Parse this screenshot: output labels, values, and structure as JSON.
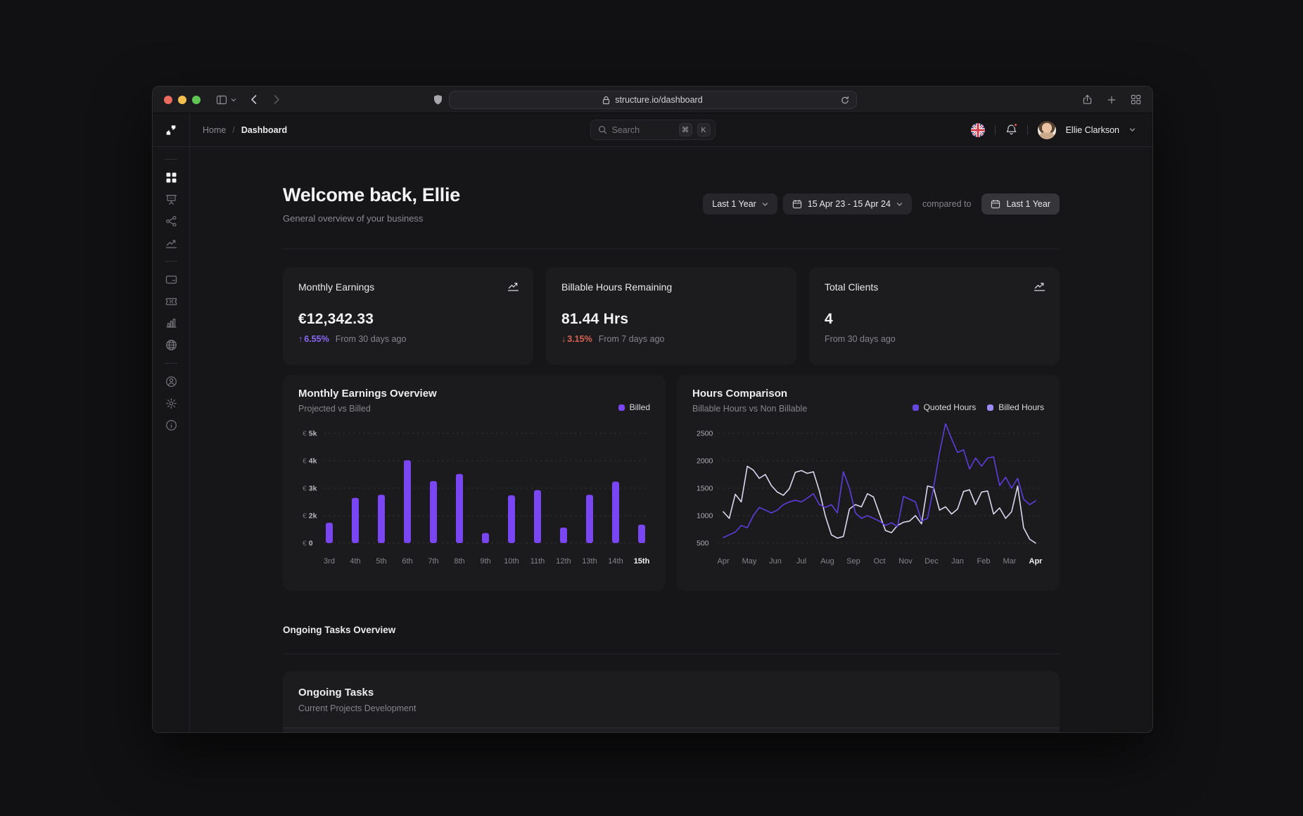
{
  "browser": {
    "url": "structure.io/dashboard"
  },
  "header": {
    "breadcrumb": {
      "home": "Home",
      "separator": "/",
      "current": "Dashboard"
    },
    "search": {
      "placeholder": "Search",
      "key_cmd": "⌘",
      "key_k": "K"
    },
    "user": {
      "name": "Ellie Clarkson"
    }
  },
  "page": {
    "title": "Welcome back, Ellie",
    "subtitle": "General overview of your business",
    "controls": {
      "range_label": "Last 1 Year",
      "date_range": "15 Apr 23 - 15 Apr 24",
      "compared_to": "compared to",
      "compare_label": "Last 1 Year"
    },
    "section_label": "Ongoing Tasks Overview"
  },
  "stats": [
    {
      "title": "Monthly Earnings",
      "value": "€12,342.33",
      "delta": "6.55%",
      "delta_dir": "up",
      "delta_arrow": "↑",
      "caption": "From 30 days ago"
    },
    {
      "title": "Billable Hours Remaining",
      "value": "81.44 Hrs",
      "delta": "3.15%",
      "delta_dir": "down",
      "delta_arrow": "↓",
      "caption": "From 7 days ago"
    },
    {
      "title": "Total Clients",
      "value": "4",
      "delta": null,
      "caption": "From 30 days ago"
    }
  ],
  "tasks": {
    "title": "Ongoing Tasks",
    "subtitle": "Current Projects Development"
  },
  "sidebar": {
    "items": [
      {
        "type": "divider"
      },
      {
        "name": "dashboard",
        "active": true
      },
      {
        "name": "presentation"
      },
      {
        "name": "workflow"
      },
      {
        "name": "trends"
      },
      {
        "type": "divider"
      },
      {
        "name": "payments"
      },
      {
        "name": "tickets"
      },
      {
        "name": "reports"
      },
      {
        "name": "globe"
      },
      {
        "type": "divider"
      },
      {
        "name": "account"
      },
      {
        "name": "settings"
      },
      {
        "name": "info"
      }
    ]
  },
  "colors": {
    "accent_bar": "#7a45f2",
    "delta_up": "#8b68f8",
    "delta_down": "#d96250",
    "line_quoted": "#5f3cdc",
    "line_billed": "#dcd8ee",
    "notification_dot": "#e8594b",
    "traffic_red": "#ed6a5f",
    "traffic_yellow": "#f5bf4f",
    "traffic_green": "#61c555"
  },
  "chart_data": [
    {
      "type": "bar",
      "title": "Monthly Earnings Overview",
      "subtitle": "Projected vs Billed",
      "legend": [
        {
          "label": "Billed",
          "color": "#7a45f2"
        }
      ],
      "categories": [
        "3rd",
        "4th",
        "5th",
        "6th",
        "7th",
        "8th",
        "9th",
        "10th",
        "11th",
        "12th",
        "13th",
        "14th",
        "15th"
      ],
      "values": [
        1480,
        2650,
        2760,
        4020,
        3260,
        3520,
        730,
        2740,
        2930,
        1130,
        2760,
        3240,
        1340
      ],
      "ylabels": [
        "€ 5k",
        "€ 4k",
        "€ 3k",
        "€ 2k",
        "€ 0"
      ],
      "yticks": [
        5000,
        4000,
        3000,
        2000,
        0
      ],
      "bar_color": "#7a45f2",
      "highlight_last": true,
      "grid": "dashed"
    },
    {
      "type": "line",
      "title": "Hours Comparison",
      "subtitle": "Billable Hours vs Non Billable",
      "legend": [
        {
          "label": "Quoted Hours",
          "color": "#6647e0"
        },
        {
          "label": "Billed Hours",
          "color": "#9c8bf2"
        }
      ],
      "x": [
        "Apr",
        "May",
        "Jun",
        "Jul",
        "Aug",
        "Sep",
        "Oct",
        "Nov",
        "Dec",
        "Jan",
        "Feb",
        "Mar",
        "Apr"
      ],
      "ylim": [
        500,
        2500
      ],
      "yticks": [
        2500,
        2000,
        1500,
        1000,
        500
      ],
      "highlight_last": true,
      "grid": "dashed",
      "series": [
        {
          "name": "Billed Hours",
          "color": "#dcd8ee",
          "values": [
            1070,
            950,
            1390,
            1250,
            1900,
            1830,
            1680,
            1750,
            1550,
            1430,
            1370,
            1490,
            1790,
            1820,
            1770,
            1800,
            1450,
            990,
            650,
            590,
            620,
            1120,
            1200,
            1160,
            1400,
            1340,
            1030,
            730,
            690,
            820,
            880,
            900,
            1000,
            850,
            1540,
            1510,
            1100,
            1160,
            1030,
            1120,
            1440,
            1470,
            1200,
            1430,
            1450,
            1030,
            1140,
            950,
            1070,
            1540,
            780,
            570,
            500
          ]
        },
        {
          "name": "Quoted Hours",
          "color": "#5f3cdc",
          "values": [
            600,
            650,
            700,
            820,
            780,
            1000,
            1150,
            1100,
            1050,
            1100,
            1200,
            1250,
            1280,
            1250,
            1320,
            1400,
            1200,
            1150,
            1200,
            1050,
            1800,
            1500,
            1050,
            950,
            1000,
            950,
            900,
            820,
            870,
            800,
            1350,
            1300,
            1250,
            900,
            950,
            1500,
            2150,
            2680,
            2400,
            2150,
            2200,
            1850,
            2050,
            1900,
            2050,
            2070,
            1550,
            1700,
            1500,
            1680,
            1300,
            1200,
            1270
          ]
        }
      ]
    }
  ]
}
